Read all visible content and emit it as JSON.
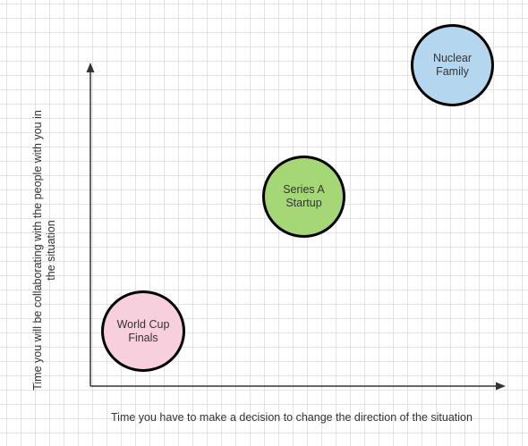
{
  "diagram": {
    "x_axis_label": "Time you have to make a decision to change the direction of the situation",
    "y_axis_label": "Time you will be collaborating with the people with you in the situation",
    "nodes": [
      {
        "id": "world-cup",
        "label": "World Cup\nFinals",
        "fill": "#f8cfdd"
      },
      {
        "id": "series-a",
        "label": "Series A\nStartup",
        "fill": "#a6d777"
      },
      {
        "id": "nuclear-family",
        "label": "Nuclear\nFamily",
        "fill": "#b5d6ef"
      }
    ],
    "axis_color": "#333333",
    "node_border_color": "#000000"
  }
}
